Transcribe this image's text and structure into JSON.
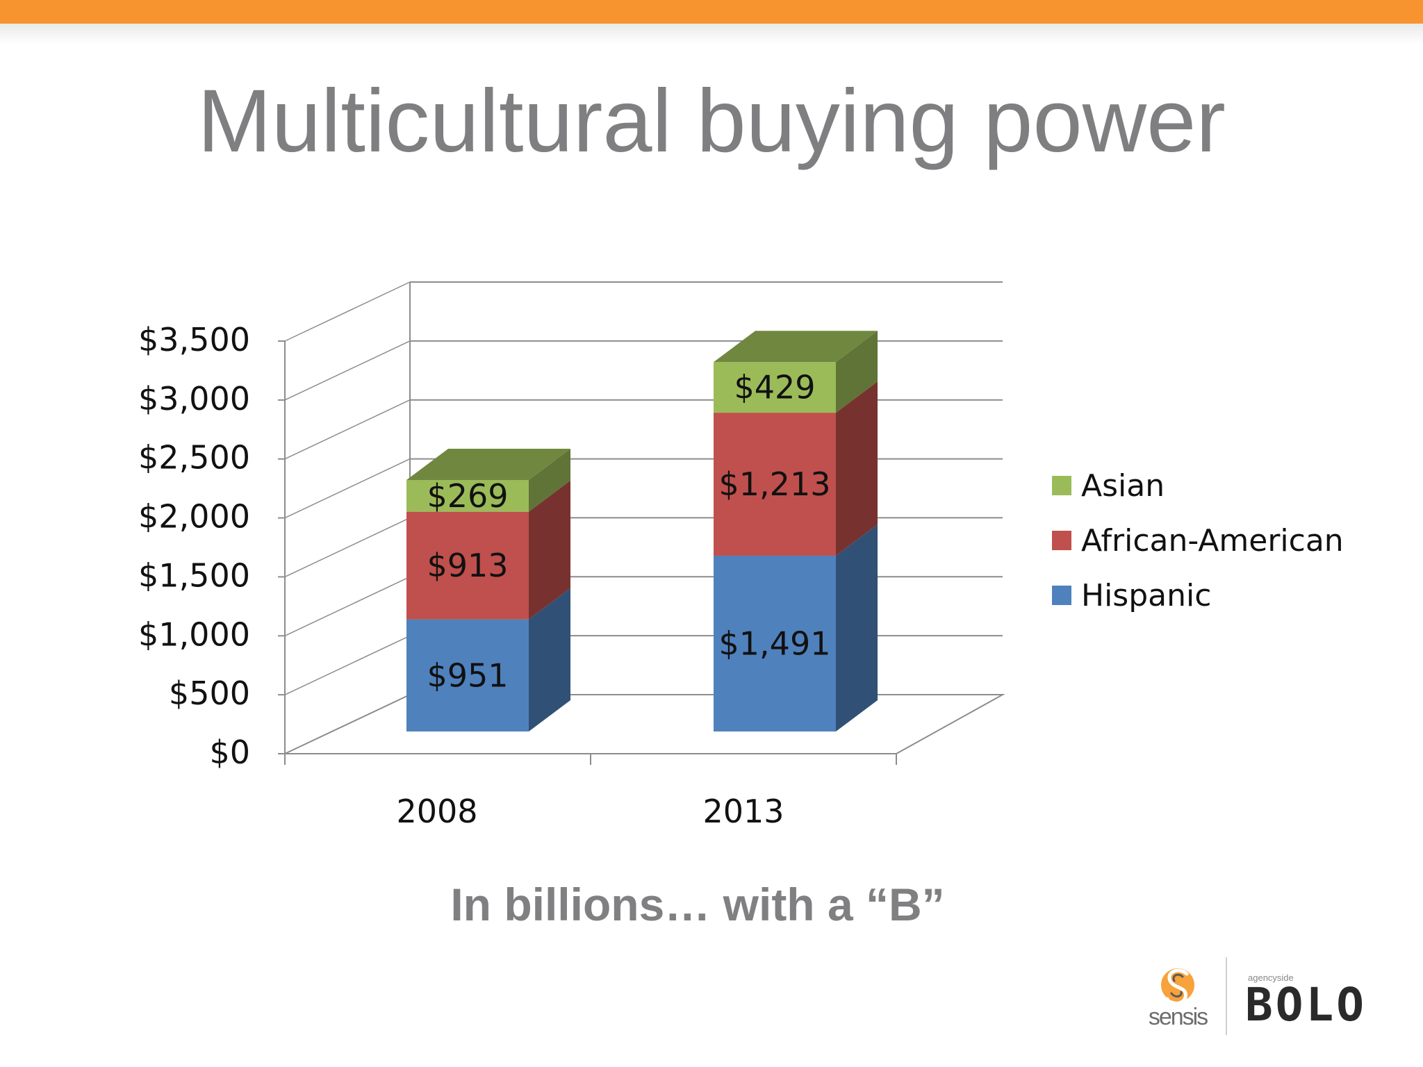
{
  "slide": {
    "title": "Multicultural buying power",
    "subtitle": "In billions… with a “B”"
  },
  "logos": {
    "sensis_text": "sensis",
    "bolo_tagline": "agencyside",
    "bolo_text": "BOLO"
  },
  "colors": {
    "top_bar": "#f7942f",
    "asian": "#9bbb59",
    "african_american": "#c0504d",
    "hispanic": "#4f81bd"
  },
  "chart_data": {
    "type": "bar",
    "stacked": true,
    "three_d": true,
    "categories": [
      "2008",
      "2013"
    ],
    "series": [
      {
        "name": "Hispanic",
        "values": [
          951,
          1491
        ],
        "labels": [
          "$951",
          "$1,491"
        ],
        "color": "#4f81bd"
      },
      {
        "name": "African-American",
        "values": [
          913,
          1213
        ],
        "labels": [
          "$913",
          "$1,213"
        ],
        "color": "#c0504d"
      },
      {
        "name": "Asian",
        "values": [
          269,
          429
        ],
        "labels": [
          "$269",
          "$429"
        ],
        "color": "#9bbb59"
      }
    ],
    "ylim": [
      0,
      3500
    ],
    "yticks": [
      0,
      500,
      1000,
      1500,
      2000,
      2500,
      3000,
      3500
    ],
    "ytick_labels": [
      "$0",
      "$500",
      "$1,000",
      "$1,500",
      "$2,000",
      "$2,500",
      "$3,000",
      "$3,500"
    ],
    "legend_order": [
      "Asian",
      "African-American",
      "Hispanic"
    ],
    "legend_position": "right",
    "grid": true
  }
}
